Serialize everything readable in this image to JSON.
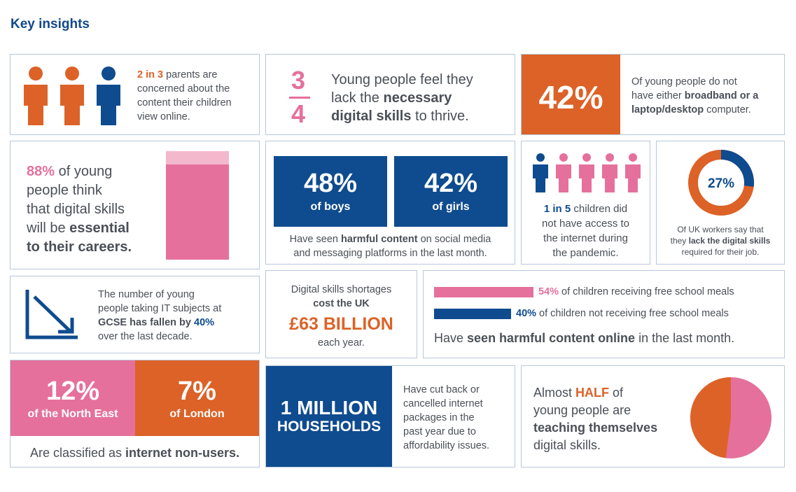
{
  "page": {
    "title": "Key insights"
  },
  "colors": {
    "navy": "#0f4b8f",
    "orange": "#dc6227",
    "pink": "#e5709c",
    "light_pink": "#f4b8cd",
    "border": "#b8c8dc"
  },
  "parents": {
    "stat": "2 in 3",
    "text_a": " parents are",
    "text_b": "concerned about the",
    "text_c": "content their children",
    "text_d": "view online.",
    "icons": [
      "person-icon-orange",
      "person-icon-orange",
      "person-icon-navy"
    ]
  },
  "skills": {
    "numerator": "3",
    "denominator": "4",
    "line1": "Young people feel they",
    "line2_a": "lack the ",
    "line2_b": "necessary",
    "line3_a": "digital skills",
    "line3_b": " to thrive."
  },
  "broadband": {
    "stat": "42%",
    "line1": "Of young people do not",
    "line2_a": "have either ",
    "line2_b": "broadband or a",
    "line3_a": "laptop/desktop",
    "line3_b": " computer."
  },
  "careers": {
    "stat": "88%",
    "line1": " of young",
    "line2": "people think",
    "line3": "that digital skills",
    "line4_a": "will be ",
    "line4_b": "essential",
    "line5": "to their careers.",
    "bar_value_percent": 88
  },
  "harmful_social": {
    "boys_stat": "48%",
    "boys_label": "of boys",
    "girls_stat": "42%",
    "girls_label": "of girls",
    "line1_a": "Have seen ",
    "line1_b": "harmful content",
    "line1_c": " on social media",
    "line2": "and messaging platforms in the last month."
  },
  "pandemic": {
    "stat": "1 in 5",
    "line1": " children did",
    "line2": "not have access to",
    "line3": "the internet during",
    "line4": "the pandemic.",
    "icons": [
      "person-icon-navy",
      "person-icon-pink",
      "person-icon-pink",
      "person-icon-pink",
      "person-icon-pink"
    ]
  },
  "workers": {
    "stat": "27%",
    "value_percent": 27,
    "line1": "Of UK workers say that",
    "line2_a": "they ",
    "line2_b": "lack the digital skills",
    "line3": "required for their job."
  },
  "gcse": {
    "line1": "The number of young",
    "line2": "people taking IT subjects at",
    "line3_a": "GCSE has fallen by ",
    "line3_b": "40%",
    "line4": "over the last decade."
  },
  "cost": {
    "line1": "Digital skills shortages",
    "line2": "cost the UK",
    "stat": "£63 BILLION",
    "line3": "each year."
  },
  "meals": {
    "series": [
      {
        "stat": "54%",
        "label": " of children receiving free school meals",
        "value": 54
      },
      {
        "stat": "40%",
        "label": " of children not receiving free school meals",
        "value": 40
      }
    ],
    "caption_a": "Have ",
    "caption_b": "seen harmful content online",
    "caption_c": " in the last month."
  },
  "non_users": {
    "ne_stat": "12%",
    "ne_label": "of the North East",
    "ldn_stat": "7%",
    "ldn_label": "of London",
    "caption_a": "Are classified as ",
    "caption_b": "internet non-users."
  },
  "households": {
    "stat_line1": "1 MILLION",
    "stat_line2": "HOUSEHOLDS",
    "line1": "Have cut back or",
    "line2": "cancelled internet",
    "line3": "packages in the",
    "line4": "past year due to",
    "line5": "affordability issues."
  },
  "self_taught": {
    "line1_a": "Almost ",
    "line1_b": "HALF",
    "line1_c": " of",
    "line2": "young people are",
    "line3": "teaching themselves",
    "line4": "digital skills.",
    "value_percent": 48
  }
}
